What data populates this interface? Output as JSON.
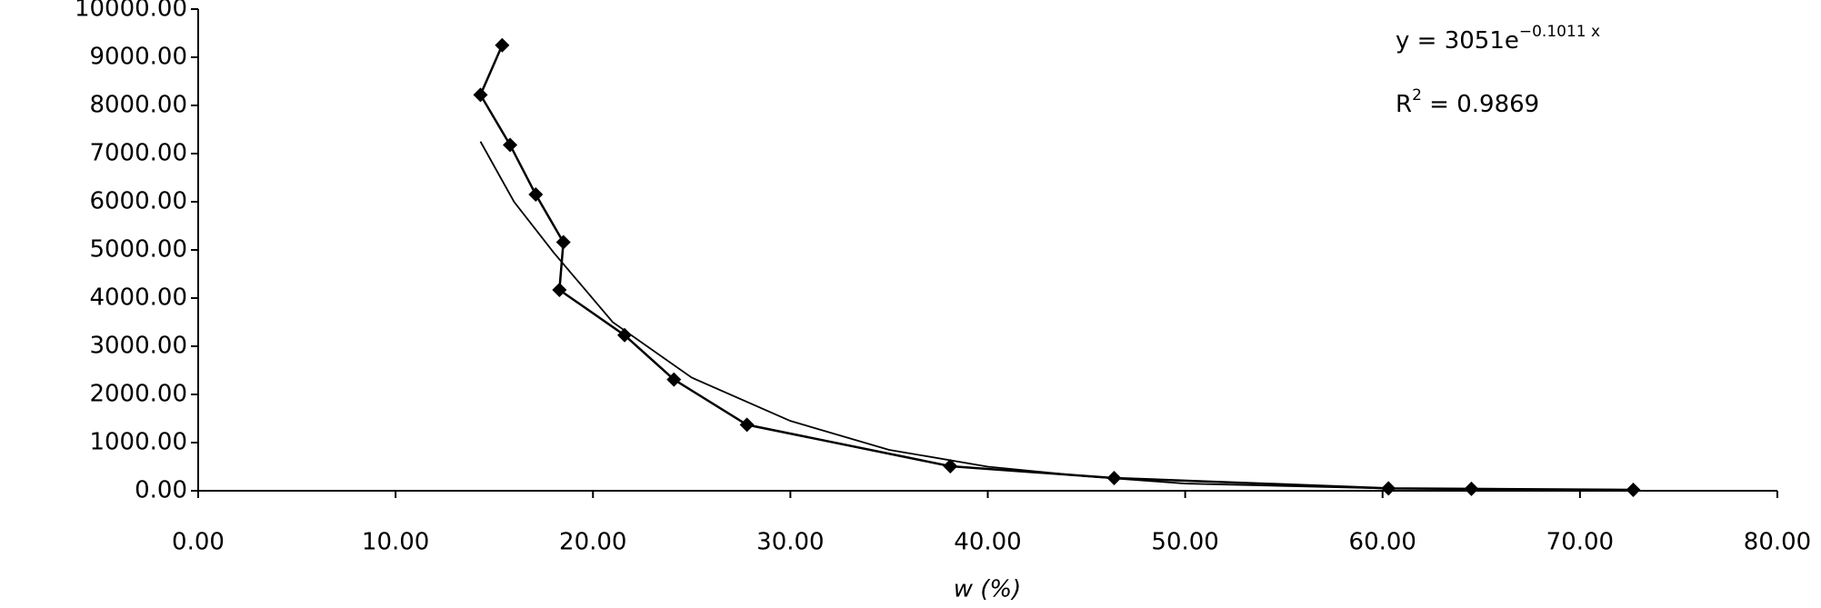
{
  "chart_data": {
    "type": "scatter-line",
    "xlabel": "w (%)",
    "equation": {
      "base": "y = 3051e",
      "exponent": "−0.1011 x"
    },
    "r_squared": {
      "base": "R",
      "exponent": "2",
      "rest": " = 0.9869"
    },
    "xlim": [
      0,
      80
    ],
    "xticks": [
      {
        "value": 0,
        "label": "0.00"
      },
      {
        "value": 10,
        "label": "10.00"
      },
      {
        "value": 20,
        "label": "20.00"
      },
      {
        "value": 30,
        "label": "30.00"
      },
      {
        "value": 40,
        "label": "40.00"
      },
      {
        "value": 50,
        "label": "50.00"
      },
      {
        "value": 60,
        "label": "60.00"
      },
      {
        "value": 70,
        "label": "70.00"
      },
      {
        "value": 80,
        "label": "80.00"
      }
    ],
    "ylim": [
      0,
      10000
    ],
    "yticks": [
      {
        "value": 0,
        "label": "0.00"
      },
      {
        "value": 1000,
        "label": "1000.00"
      },
      {
        "value": 2000,
        "label": "2000.00"
      },
      {
        "value": 3000,
        "label": "3000.00"
      },
      {
        "value": 4000,
        "label": "4000.00"
      },
      {
        "value": 5000,
        "label": "5000.00"
      },
      {
        "value": 6000,
        "label": "6000.00"
      },
      {
        "value": 7000,
        "label": "7000.00"
      },
      {
        "value": 8000,
        "label": "8000.00"
      },
      {
        "value": 9000,
        "label": "9000.00"
      },
      {
        "value": 10000,
        "label": "10000.00"
      }
    ],
    "grid": false,
    "series": [
      {
        "color": "#000000",
        "markers": true,
        "x": [
          15.4,
          14.3,
          15.8,
          17.1,
          18.5,
          18.3,
          21.6,
          24.1,
          27.8,
          38.1,
          46.4,
          60.3,
          64.5,
          72.7
        ],
        "values": [
          9250,
          8220,
          7180,
          6150,
          5160,
          4170,
          3230,
          2310,
          1370,
          510,
          265,
          50,
          40,
          20
        ]
      },
      {
        "color": "#000000",
        "markers": false,
        "x": [
          14.3,
          16,
          18,
          21,
          25,
          30,
          35,
          40,
          45,
          50,
          60,
          72.6
        ],
        "values": [
          7250,
          6000,
          4950,
          3500,
          2350,
          1450,
          850,
          500,
          300,
          150,
          50,
          10
        ]
      }
    ]
  }
}
